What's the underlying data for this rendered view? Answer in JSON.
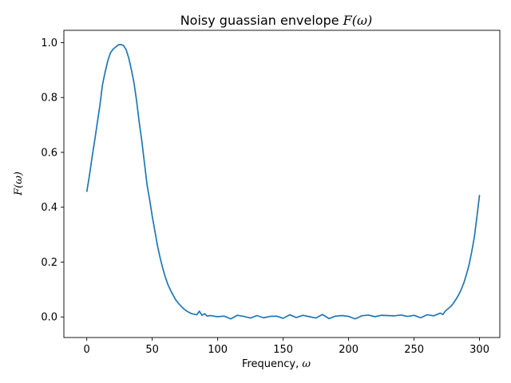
{
  "chart_data": {
    "type": "line",
    "title": {
      "text": "Noisy guassian envelope ",
      "math": "F(ω)"
    },
    "xlabel": {
      "text": "Frequency, ",
      "math": "ω"
    },
    "ylabel": {
      "text": "",
      "math": "F(ω)"
    },
    "xlim": [
      -17.5,
      315.5
    ],
    "ylim": [
      -0.075,
      1.045
    ],
    "xticks": [
      0,
      50,
      100,
      150,
      200,
      250,
      300
    ],
    "yticks": [
      "0.0",
      "0.2",
      "0.4",
      "0.6",
      "0.8",
      "1.0"
    ],
    "grid": false,
    "legend": "none",
    "colors": {
      "line": "#1f77b4"
    },
    "series": [
      {
        "x": [
          0,
          2,
          4,
          6,
          8,
          10,
          12,
          14,
          16,
          18,
          20,
          22,
          24,
          26,
          28,
          30,
          32,
          34,
          36,
          38,
          40,
          42,
          44,
          46,
          48,
          50,
          52,
          54,
          56,
          58,
          60,
          62,
          64,
          66,
          68,
          70,
          72,
          74,
          76,
          78,
          80,
          82,
          84,
          86,
          88,
          90,
          92,
          94,
          96,
          98,
          100,
          105,
          110,
          115,
          120,
          125,
          130,
          135,
          140,
          145,
          150,
          155,
          160,
          165,
          170,
          175,
          180,
          185,
          190,
          195,
          200,
          205,
          210,
          215,
          220,
          225,
          230,
          235,
          240,
          245,
          250,
          255,
          260,
          265,
          270,
          272,
          274,
          276,
          278,
          280,
          282,
          284,
          286,
          288,
          290,
          292,
          294,
          296,
          298,
          300
        ],
        "y": [
          0.456,
          0.515,
          0.581,
          0.642,
          0.707,
          0.771,
          0.847,
          0.893,
          0.933,
          0.962,
          0.976,
          0.984,
          0.992,
          0.993,
          0.99,
          0.975,
          0.945,
          0.903,
          0.855,
          0.79,
          0.711,
          0.643,
          0.563,
          0.483,
          0.428,
          0.367,
          0.314,
          0.26,
          0.216,
          0.178,
          0.145,
          0.118,
          0.097,
          0.079,
          0.062,
          0.05,
          0.039,
          0.03,
          0.022,
          0.017,
          0.012,
          0.01,
          0.008,
          0.021,
          0.006,
          0.012,
          0.003,
          0.005,
          0.004,
          0.002,
          0.001,
          0.003,
          -0.007,
          0.006,
          0.002,
          -0.004,
          0.005,
          -0.003,
          0.002,
          0.003,
          -0.005,
          0.008,
          -0.002,
          0.006,
          0.001,
          -0.004,
          0.009,
          -0.006,
          0.003,
          0.005,
          0.002,
          -0.007,
          0.004,
          0.007,
          0.001,
          0.006,
          0.005,
          0.004,
          0.007,
          0.002,
          0.006,
          -0.003,
          0.008,
          0.004,
          0.014,
          0.009,
          0.022,
          0.03,
          0.038,
          0.05,
          0.064,
          0.08,
          0.1,
          0.124,
          0.155,
          0.19,
          0.237,
          0.29,
          0.365,
          0.445
        ]
      }
    ]
  }
}
